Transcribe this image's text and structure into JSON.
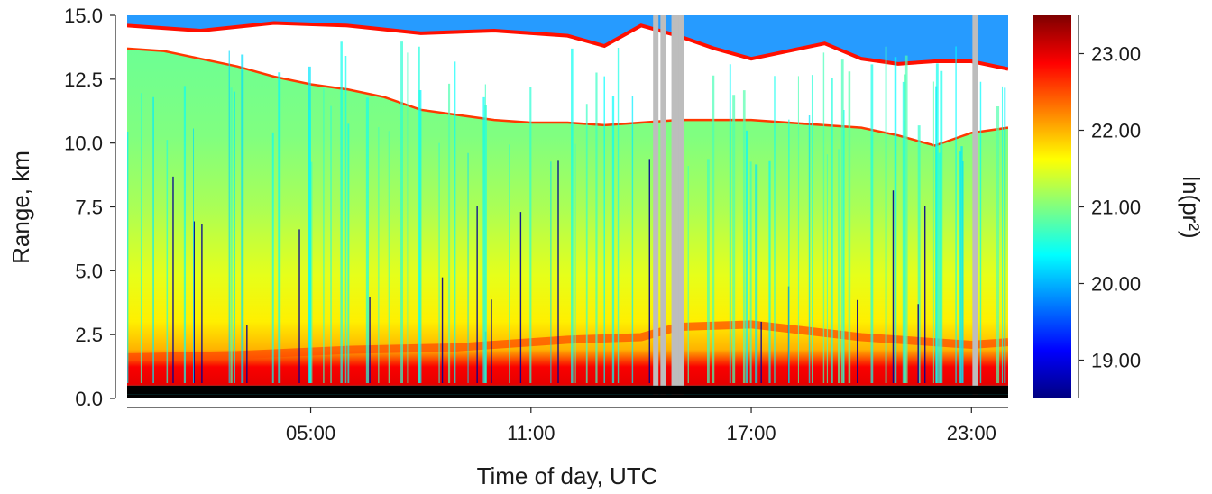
{
  "chart_data": {
    "type": "heatmap",
    "title": "",
    "xlabel": "Time of day, UTC",
    "ylabel": "Range, km",
    "colorbar_label": "ln(pr²)",
    "xlim": [
      0,
      24
    ],
    "ylim": [
      0.0,
      15.0
    ],
    "x_ticks": [
      {
        "value": 5,
        "label": "05:00"
      },
      {
        "value": 11,
        "label": "11:00"
      },
      {
        "value": 17,
        "label": "17:00"
      },
      {
        "value": 23,
        "label": "23:00"
      }
    ],
    "y_ticks": [
      {
        "value": 0.0,
        "label": "0.0"
      },
      {
        "value": 2.5,
        "label": "2.5"
      },
      {
        "value": 5.0,
        "label": "5.0"
      },
      {
        "value": 7.5,
        "label": "7.5"
      },
      {
        "value": 10.0,
        "label": "10.0"
      },
      {
        "value": 12.5,
        "label": "12.5"
      },
      {
        "value": 15.0,
        "label": "15.0"
      }
    ],
    "colorbar_range": [
      18.5,
      23.5
    ],
    "colorbar_ticks": [
      {
        "value": 19,
        "label": "19.00"
      },
      {
        "value": 20,
        "label": "20.00"
      },
      {
        "value": 21,
        "label": "21.00"
      },
      {
        "value": 22,
        "label": "22.00"
      },
      {
        "value": 23,
        "label": "23.00"
      }
    ],
    "colormap": "jet",
    "colormap_stops": [
      "#00007f",
      "#0000ff",
      "#0080ff",
      "#00ffff",
      "#80ff80",
      "#ffff00",
      "#ff8000",
      "#ff0000",
      "#7f0000"
    ],
    "missing_color": "#bdbdbd",
    "no_signal_color": "#ffffff",
    "blocked_color": "#000000",
    "cloud_top_km": {
      "x": [
        0,
        1,
        2,
        3,
        4,
        5,
        6,
        7,
        8,
        9,
        10,
        11,
        12,
        13,
        14,
        15,
        16,
        17,
        18,
        19,
        20,
        21,
        22,
        23,
        24
      ],
      "y": [
        13.7,
        13.6,
        13.3,
        13.0,
        12.6,
        12.3,
        12.1,
        11.8,
        11.3,
        11.1,
        10.9,
        10.8,
        10.8,
        10.7,
        10.8,
        10.9,
        10.9,
        10.9,
        10.8,
        10.7,
        10.6,
        10.3,
        9.9,
        10.4,
        10.6
      ]
    },
    "upper_cloud_km": {
      "x": [
        0,
        2,
        4,
        6,
        8,
        10,
        12,
        13,
        14,
        15,
        16,
        17,
        18,
        19,
        20,
        21,
        22,
        23,
        24
      ],
      "y": [
        14.6,
        14.4,
        14.7,
        14.6,
        14.3,
        14.4,
        14.2,
        13.8,
        14.6,
        14.2,
        13.7,
        13.3,
        13.6,
        13.9,
        13.3,
        13.1,
        13.2,
        13.2,
        12.9
      ]
    },
    "boundary_layer_top_km": {
      "x": [
        0,
        3,
        6,
        9,
        12,
        14,
        15,
        17,
        20,
        23,
        24
      ],
      "y": [
        1.6,
        1.7,
        1.9,
        2.0,
        2.3,
        2.4,
        2.8,
        2.9,
        2.4,
        2.1,
        2.2
      ]
    },
    "data_gaps_utc": [
      14.4,
      14.6,
      14.9,
      15.0,
      15.1,
      23.1
    ]
  }
}
